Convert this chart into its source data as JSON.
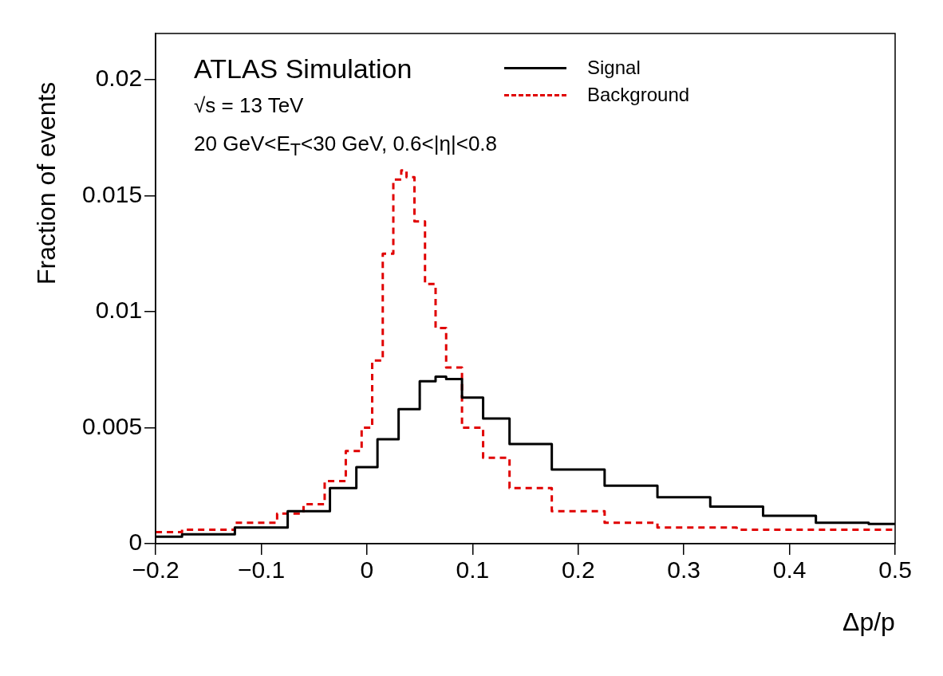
{
  "chart_data": {
    "type": "step",
    "xlabel": "Δp/p",
    "ylabel": "Fraction of events",
    "annotations": [
      "ATLAS Simulation",
      "√s = 13 TeV",
      "20 GeV<E$_{T}$<30 GeV, 0.6<|η|<0.8"
    ],
    "xlim": [
      -0.2,
      0.5
    ],
    "xticks": [
      {
        "value": -0.2,
        "label": "−0.2"
      },
      {
        "value": -0.1,
        "label": "−0.1"
      },
      0,
      0.1,
      0.2,
      0.3,
      0.4,
      0.5
    ],
    "ylim": [
      0,
      0.022
    ],
    "yticks": [
      0,
      0.005,
      0.01,
      0.015,
      0.02
    ],
    "grid": false,
    "legend": "top right",
    "series": [
      {
        "name": "Signal",
        "color": "#000000",
        "line_style": "solid",
        "x": [
          -0.2,
          -0.15,
          -0.1,
          -0.05,
          -0.02,
          0,
          0.02,
          0.04,
          0.06,
          0.07,
          0.08,
          0.1,
          0.12,
          0.15,
          0.2,
          0.25,
          0.3,
          0.35,
          0.4,
          0.45,
          0.5
        ],
        "values": [
          0.0003,
          0.0004,
          0.0007,
          0.0014,
          0.0024,
          0.0033,
          0.0045,
          0.0058,
          0.007,
          0.0072,
          0.0071,
          0.0063,
          0.0054,
          0.0043,
          0.0032,
          0.0025,
          0.002,
          0.0016,
          0.0012,
          0.0009,
          0.00085
        ]
      },
      {
        "name": "Background",
        "color": "#e00000",
        "line_style": "dashed",
        "x": [
          -0.2,
          -0.15,
          -0.1,
          -0.07,
          -0.05,
          -0.03,
          -0.01,
          0,
          0.01,
          0.02,
          0.03,
          0.035,
          0.04,
          0.05,
          0.06,
          0.07,
          0.08,
          0.1,
          0.12,
          0.15,
          0.2,
          0.25,
          0.3,
          0.4,
          0.5
        ],
        "values": [
          0.0005,
          0.0006,
          0.0009,
          0.0013,
          0.0017,
          0.0027,
          0.004,
          0.005,
          0.0079,
          0.0125,
          0.0157,
          0.0161,
          0.0158,
          0.0139,
          0.0112,
          0.0093,
          0.0076,
          0.005,
          0.0037,
          0.0024,
          0.0014,
          0.0009,
          0.0007,
          0.0006,
          0.0006
        ]
      }
    ]
  }
}
